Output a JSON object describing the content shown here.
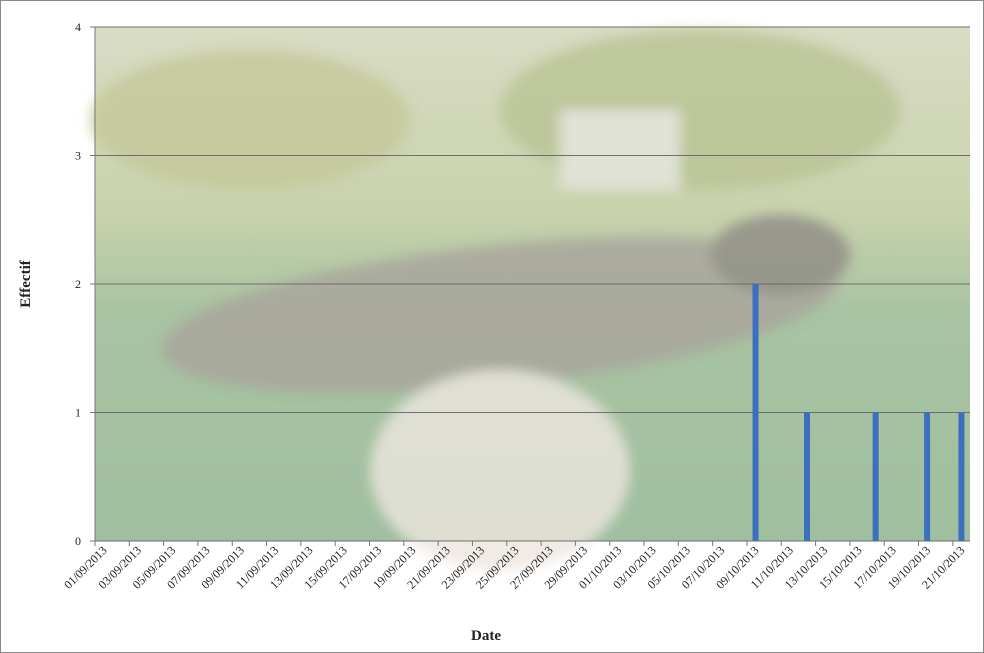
{
  "chart_data": {
    "type": "bar",
    "x_label": "Date",
    "y_label": "Effectif",
    "categories": [
      "01/09/2013",
      null,
      "03/09/2013",
      null,
      "05/09/2013",
      null,
      "07/09/2013",
      null,
      "09/09/2013",
      null,
      "11/09/2013",
      null,
      "13/09/2013",
      null,
      "15/09/2013",
      null,
      "17/09/2013",
      null,
      "19/09/2013",
      null,
      "21/09/2013",
      null,
      "23/09/2013",
      null,
      "25/09/2013",
      null,
      "27/09/2013",
      null,
      "29/09/2013",
      null,
      "01/10/2013",
      null,
      "03/10/2013",
      null,
      "05/10/2013",
      null,
      "07/10/2013",
      null,
      "09/10/2013",
      null,
      "11/10/2013",
      null,
      "13/10/2013",
      null,
      "15/10/2013",
      null,
      "17/10/2013",
      null,
      "19/10/2013",
      null,
      "21/10/2013"
    ],
    "values": [
      0,
      0,
      0,
      0,
      0,
      0,
      0,
      0,
      0,
      0,
      0,
      0,
      0,
      0,
      0,
      0,
      0,
      0,
      0,
      0,
      0,
      0,
      0,
      0,
      0,
      0,
      0,
      0,
      0,
      0,
      0,
      0,
      0,
      0,
      0,
      0,
      0,
      0,
      2,
      0,
      0,
      1,
      0,
      0,
      0,
      1,
      0,
      0,
      1,
      0,
      1
    ],
    "color": "#3c6fc0",
    "ylim": [
      0,
      4
    ],
    "yticks": [
      0,
      1,
      2,
      3,
      4
    ],
    "grid": true
  }
}
